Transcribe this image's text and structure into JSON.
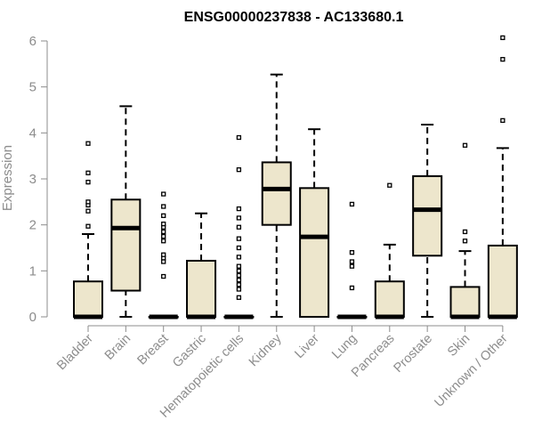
{
  "chart_data": {
    "type": "boxplot",
    "title": "ENSG00000237838 - AC133680.1",
    "xlabel": "",
    "ylabel": "Expression",
    "ylim": [
      0,
      6.2
    ],
    "yticks": [
      0,
      1,
      2,
      3,
      4,
      5,
      6
    ],
    "colors": {
      "box_fill": "#ede6cc",
      "box_stroke": "#000000",
      "axis": "#8c8c8c",
      "text": "#8c8c8c"
    },
    "categories": [
      "Bladder",
      "Brain",
      "Breast",
      "Gastric",
      "Hematopoietic cells",
      "Kidney",
      "Liver",
      "Lung",
      "Pancreas",
      "Prostate",
      "Skin",
      "Unknown / Other"
    ],
    "series": [
      {
        "name": "Bladder",
        "min": 0,
        "q1": 0,
        "median": 0,
        "q3": 0.77,
        "max": 1.8,
        "outliers": [
          1.97,
          2.3,
          2.43,
          2.5,
          2.93,
          3.13,
          3.77
        ]
      },
      {
        "name": "Brain",
        "min": 0,
        "q1": 0.57,
        "median": 1.93,
        "q3": 2.55,
        "max": 4.58,
        "outliers": []
      },
      {
        "name": "Breast",
        "min": 0,
        "q1": 0,
        "median": 0,
        "q3": 0,
        "max": 0,
        "outliers": [
          0.88,
          1.2,
          1.28,
          1.35,
          1.65,
          1.75,
          1.85,
          1.95,
          2.02,
          2.2,
          2.4,
          2.67
        ]
      },
      {
        "name": "Gastric",
        "min": 0,
        "q1": 0,
        "median": 0,
        "q3": 1.22,
        "max": 2.25,
        "outliers": []
      },
      {
        "name": "Hematopoietic cells",
        "min": 0,
        "q1": 0,
        "median": 0,
        "q3": 0,
        "max": 0,
        "outliers": [
          0.42,
          0.6,
          0.7,
          0.8,
          0.9,
          1.0,
          1.1,
          1.3,
          1.5,
          1.7,
          1.95,
          2.15,
          2.35,
          3.2,
          3.9
        ]
      },
      {
        "name": "Kidney",
        "min": 0,
        "q1": 2.0,
        "median": 2.78,
        "q3": 3.36,
        "max": 5.27,
        "outliers": []
      },
      {
        "name": "Liver",
        "min": 0,
        "q1": 0,
        "median": 1.74,
        "q3": 2.8,
        "max": 4.08,
        "outliers": []
      },
      {
        "name": "Lung",
        "min": 0,
        "q1": 0,
        "median": 0,
        "q3": 0,
        "max": 0,
        "outliers": [
          0.63,
          1.1,
          1.2,
          1.4,
          2.45
        ]
      },
      {
        "name": "Pancreas",
        "min": 0,
        "q1": 0,
        "median": 0,
        "q3": 0.77,
        "max": 1.57,
        "outliers": [
          2.86
        ]
      },
      {
        "name": "Prostate",
        "min": 0,
        "q1": 1.33,
        "median": 2.33,
        "q3": 3.06,
        "max": 4.18,
        "outliers": []
      },
      {
        "name": "Skin",
        "min": 0,
        "q1": 0,
        "median": 0,
        "q3": 0.65,
        "max": 1.43,
        "outliers": [
          1.65,
          1.85,
          3.73
        ]
      },
      {
        "name": "Unknown / Other",
        "min": 0,
        "q1": 0,
        "median": 0,
        "q3": 1.55,
        "max": 3.67,
        "outliers": [
          4.27,
          5.6,
          6.07
        ]
      }
    ]
  }
}
